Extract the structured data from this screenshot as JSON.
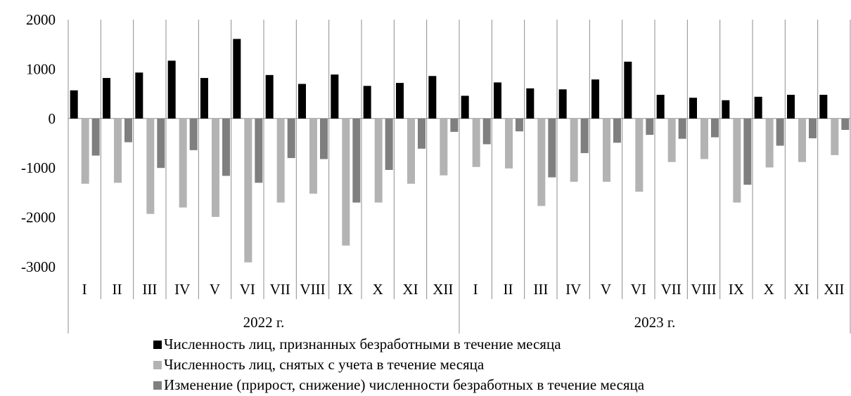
{
  "chart_data": {
    "type": "bar",
    "title": "",
    "xlabel": "",
    "ylabel": "",
    "ylim": [
      -3000,
      2000
    ],
    "yticks": [
      "2000",
      "1000",
      "0",
      "-1000",
      "-2000",
      "-3000"
    ],
    "ytick_values": [
      2000,
      1000,
      0,
      -1000,
      -2000,
      -3000
    ],
    "grid": "vertical separators between months",
    "legend_position": "bottom",
    "groups": [
      {
        "label": "2022 г.",
        "categories": [
          "I",
          "II",
          "III",
          "IV",
          "V",
          "VI",
          "VII",
          "VIII",
          "IX",
          "X",
          "XI",
          "XII"
        ]
      },
      {
        "label": "2023 г.",
        "categories": [
          "I",
          "II",
          "III",
          "IV",
          "V",
          "VI",
          "VII",
          "VIII",
          "IX",
          "X",
          "XI",
          "XII"
        ]
      }
    ],
    "series": [
      {
        "name": "Численность лиц, признанных безработными в течение месяца",
        "color": "#000000",
        "values": [
          570,
          820,
          930,
          1170,
          820,
          1610,
          880,
          700,
          890,
          660,
          720,
          860,
          460,
          730,
          610,
          590,
          790,
          1150,
          480,
          420,
          370,
          440,
          480,
          480
        ]
      },
      {
        "name": "Численность лиц, снятых с учета в течение месяца",
        "color": "#b3b3b3",
        "values": [
          -1320,
          -1300,
          -1930,
          -1800,
          -1990,
          -2910,
          -1700,
          -1520,
          -2570,
          -1700,
          -1320,
          -1150,
          -980,
          -1010,
          -1770,
          -1280,
          -1280,
          -1480,
          -880,
          -820,
          -1700,
          -990,
          -880,
          -740
        ]
      },
      {
        "name": "Изменение (прирост, снижение) численности безработных в течение месяца",
        "color": "#7f7f7f",
        "values": [
          -750,
          -480,
          -1000,
          -640,
          -1160,
          -1300,
          -800,
          -820,
          -1700,
          -1040,
          -610,
          -270,
          -520,
          -260,
          -1190,
          -700,
          -490,
          -330,
          -410,
          -380,
          -1340,
          -550,
          -400,
          -230
        ]
      }
    ]
  }
}
